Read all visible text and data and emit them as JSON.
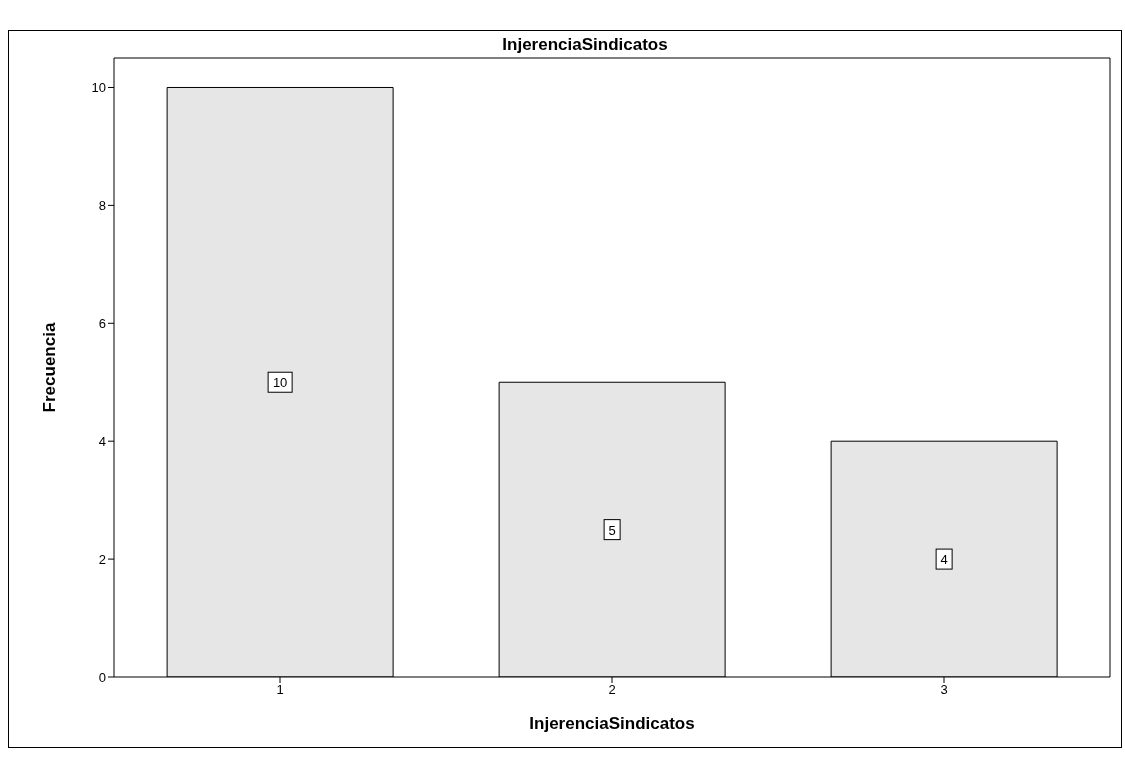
{
  "chart_data": {
    "type": "bar",
    "title": "InjerenciaSindicatos",
    "xlabel": "InjerenciaSindicatos",
    "ylabel": "Frecuencia",
    "categories": [
      "1",
      "2",
      "3"
    ],
    "values": [
      10,
      5,
      4
    ],
    "color": "#e6e6e6",
    "ylim": [
      0,
      10.5
    ],
    "yticks": [
      0,
      2,
      4,
      6,
      8,
      10
    ],
    "data_labels": true
  }
}
